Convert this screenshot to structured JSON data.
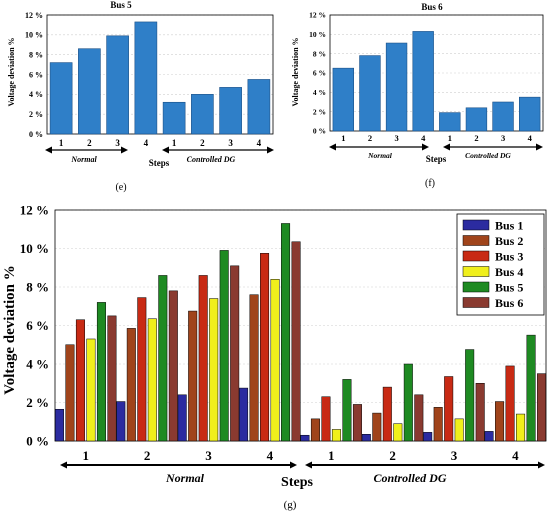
{
  "chart_data": [
    {
      "panel": "(e)",
      "type": "bar",
      "title": "Bus 5",
      "ylabel": "Voltage deviation %",
      "xlabel": "Steps",
      "ylim": [
        0,
        12
      ],
      "yticks": [
        "0 %",
        "2 %",
        "4 %",
        "6 %",
        "8 %",
        "10 %",
        "12 %"
      ],
      "grid": true,
      "categories": [
        "1",
        "2",
        "3",
        "4",
        "1",
        "2",
        "3",
        "4"
      ],
      "groups": [
        "Normal",
        "Controlled DG"
      ],
      "values": [
        7.2,
        8.6,
        9.9,
        11.3,
        3.2,
        4.0,
        4.7,
        5.5
      ],
      "color": "#2f7fc8"
    },
    {
      "panel": "(f)",
      "type": "bar",
      "title": "Bus 6",
      "ylabel": "Voltage deviation %",
      "xlabel": "Steps",
      "ylim": [
        0,
        12
      ],
      "yticks": [
        "0 %",
        "2 %",
        "4 %",
        "6 %",
        "8 %",
        "10 %",
        "12 %"
      ],
      "grid": true,
      "categories": [
        "1",
        "2",
        "3",
        "4",
        "1",
        "2",
        "3",
        "4"
      ],
      "groups": [
        "Normal",
        "Controlled DG"
      ],
      "values": [
        6.5,
        7.8,
        9.1,
        10.3,
        1.9,
        2.4,
        3.0,
        3.5
      ],
      "color": "#2f7fc8"
    },
    {
      "panel": "(g)",
      "type": "bar",
      "title": "",
      "ylabel": "Voltage deviation %",
      "xlabel": "Steps",
      "ylim": [
        0,
        12
      ],
      "yticks": [
        "0 %",
        "2 %",
        "4 %",
        "6 %",
        "8 %",
        "10 %",
        "12 %"
      ],
      "grid": true,
      "legend": "top-right",
      "categories": [
        "1",
        "2",
        "3",
        "4",
        "1",
        "2",
        "3",
        "4"
      ],
      "groups": [
        "Normal",
        "Controlled DG"
      ],
      "series": [
        {
          "name": "Bus 1",
          "color": "#2b2ba0",
          "values": [
            1.65,
            2.05,
            2.4,
            2.75,
            0.3,
            0.35,
            0.45,
            0.5
          ]
        },
        {
          "name": "Bus 2",
          "color": "#a0441b",
          "values": [
            5.0,
            5.85,
            6.75,
            7.6,
            1.15,
            1.45,
            1.75,
            2.05
          ]
        },
        {
          "name": "Bus 3",
          "color": "#c82a14",
          "values": [
            6.3,
            7.45,
            8.6,
            9.75,
            2.3,
            2.8,
            3.35,
            3.9
          ]
        },
        {
          "name": "Bus 4",
          "color": "#f0ef1c",
          "values": [
            5.3,
            6.35,
            7.4,
            8.4,
            0.6,
            0.9,
            1.15,
            1.4
          ]
        },
        {
          "name": "Bus 5",
          "color": "#1e8a22",
          "values": [
            7.2,
            8.6,
            9.9,
            11.3,
            3.2,
            4.0,
            4.75,
            5.5
          ]
        },
        {
          "name": "Bus 6",
          "color": "#8a3a30",
          "values": [
            6.5,
            7.8,
            9.1,
            10.35,
            1.9,
            2.4,
            3.0,
            3.5
          ]
        }
      ]
    }
  ]
}
